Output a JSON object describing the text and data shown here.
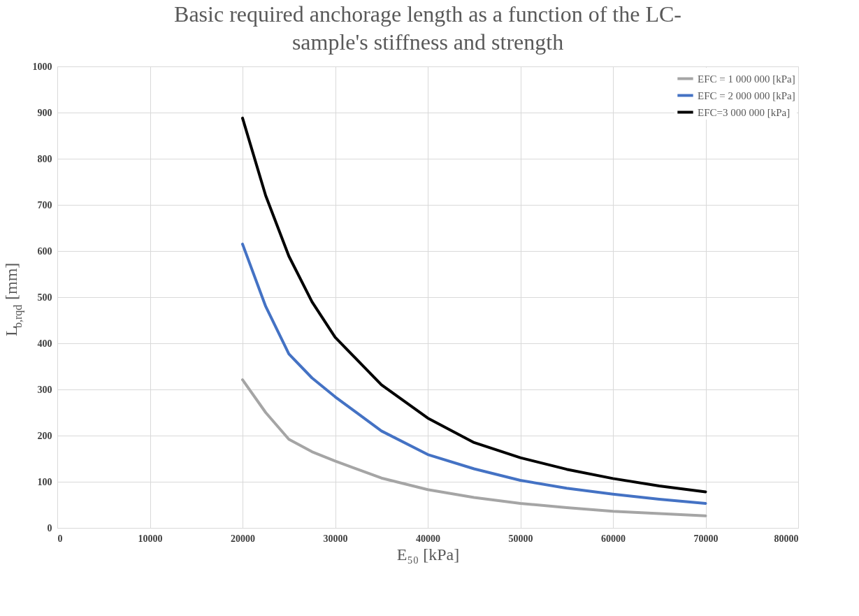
{
  "chart_data": {
    "type": "line",
    "title": "Basic required anchorage length as a function of the LC-sample's stiffness and strength",
    "xlabel": "E₅₀ [kPa]",
    "ylabel": "L$_{b,rqd}$ [mm]",
    "x": [
      20000,
      22500,
      25000,
      27500,
      30000,
      35000,
      40000,
      45000,
      50000,
      55000,
      60000,
      65000,
      70000
    ],
    "series": [
      {
        "name": "EFC = 1 000 000 [kPa]",
        "color": "#a5a5a5",
        "values": [
          321,
          250,
          192,
          165,
          145,
          108,
          83,
          66,
          53,
          44,
          36,
          31,
          26
        ]
      },
      {
        "name": "EFC = 2 000 000 [kPa]",
        "color": "#4472c4",
        "values": [
          615,
          480,
          377,
          325,
          284,
          210,
          159,
          128,
          103,
          86,
          73,
          62,
          53
        ]
      },
      {
        "name": "EFC=3 000 000 [kPa]",
        "color": "#000000",
        "values": [
          888,
          720,
          589,
          490,
          413,
          310,
          238,
          185,
          152,
          127,
          107,
          91,
          78
        ]
      }
    ],
    "xlim": [
      0,
      80000
    ],
    "xticks": [
      0,
      10000,
      20000,
      30000,
      40000,
      50000,
      60000,
      70000,
      80000
    ],
    "ylim": [
      0,
      1000
    ],
    "yticks": [
      0,
      100,
      200,
      300,
      400,
      500,
      600,
      700,
      800,
      900,
      1000
    ],
    "grid": true,
    "legend": "top right",
    "marker": "none",
    "line_style": "solid"
  }
}
